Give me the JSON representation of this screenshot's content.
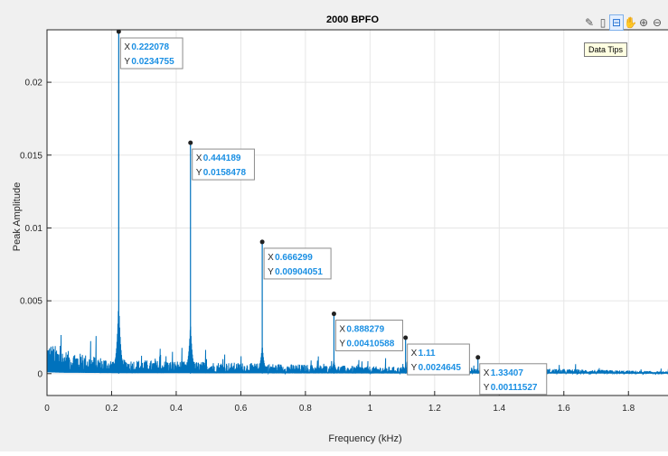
{
  "toolbar": {
    "items": [
      {
        "icon": "brush-icon",
        "glyph": "✎"
      },
      {
        "icon": "legend-icon",
        "glyph": "▯"
      },
      {
        "icon": "data-tips-icon",
        "glyph": "⊟",
        "active": true
      },
      {
        "icon": "pan-icon",
        "glyph": "✋"
      },
      {
        "icon": "zoom-in-icon",
        "glyph": "⊕"
      },
      {
        "icon": "zoom-out-icon",
        "glyph": "⊖"
      },
      {
        "icon": "home-icon",
        "glyph": "⌂"
      }
    ],
    "tooltip": "Data Tips"
  },
  "chart_data": {
    "type": "line",
    "title": "2000 BPFO",
    "xlabel": "Frequency (kHz)",
    "ylabel": "Peak Amplitude",
    "xlim": [
      0,
      1.97
    ],
    "ylim": [
      -0.0015,
      0.0236
    ],
    "xticks": [
      0,
      0.2,
      0.4,
      0.6,
      0.8,
      1,
      1.2,
      1.4,
      1.6,
      1.8
    ],
    "xtick_labels": [
      "0",
      "0.2",
      "0.4",
      "0.6",
      "0.8",
      "1",
      "1.2",
      "1.4",
      "1.6",
      "1.8"
    ],
    "yticks": [
      0,
      0.005,
      0.01,
      0.015,
      0.02
    ],
    "ytick_labels": [
      "0",
      "0.005",
      "0.01",
      "0.015",
      "0.02"
    ],
    "grid": true,
    "line_color": "#0072bd",
    "series": [
      {
        "peaks": [
          {
            "x": 0.222078,
            "y": 0.0234755
          },
          {
            "x": 0.444189,
            "y": 0.0158478
          },
          {
            "x": 0.666299,
            "y": 0.00904051
          },
          {
            "x": 0.888279,
            "y": 0.00410588
          },
          {
            "x": 1.11,
            "y": 0.0024645
          },
          {
            "x": 1.33407,
            "y": 0.00111527
          }
        ],
        "noise_floor": [
          {
            "x": 0,
            "y": 0.0018
          },
          {
            "x": 0.05,
            "y": 0.0013
          },
          {
            "x": 0.2,
            "y": 0.0008
          },
          {
            "x": 0.6,
            "y": 0.0006
          },
          {
            "x": 1.0,
            "y": 0.0004
          },
          {
            "x": 1.5,
            "y": 0.0003
          },
          {
            "x": 1.97,
            "y": 0.0001
          }
        ]
      }
    ],
    "datatips": [
      {
        "x_label": "X",
        "x_value": "0.222078",
        "y_label": "Y",
        "y_value": "0.0234755"
      },
      {
        "x_label": "X",
        "x_value": "0.444189",
        "y_label": "Y",
        "y_value": "0.0158478"
      },
      {
        "x_label": "X",
        "x_value": "0.666299",
        "y_label": "Y",
        "y_value": "0.00904051"
      },
      {
        "x_label": "X",
        "x_value": "0.888279",
        "y_label": "Y",
        "y_value": "0.00410588"
      },
      {
        "x_label": "X",
        "x_value": "1.11",
        "y_label": "Y",
        "y_value": "0.0024645"
      },
      {
        "x_label": "X",
        "x_value": "1.33407",
        "y_label": "Y",
        "y_value": "0.00111527"
      }
    ]
  }
}
